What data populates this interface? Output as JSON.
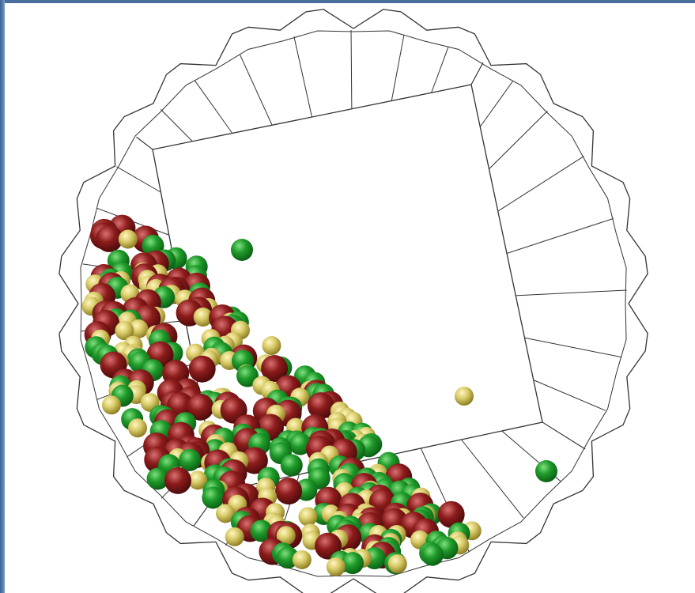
{
  "scene": {
    "description_colors": {
      "frame": "#4a6f9c",
      "background": "#ffffff",
      "outline": "#333333"
    },
    "particles": {
      "palette": {
        "green": [
          "#0b5e14",
          "#1f9a2a",
          "#7fe07f"
        ],
        "red": [
          "#4a0a0a",
          "#8c1c1c",
          "#d97070"
        ],
        "yellow": [
          "#8a7a20",
          "#d9cc6a",
          "#fff6c0"
        ]
      }
    }
  }
}
